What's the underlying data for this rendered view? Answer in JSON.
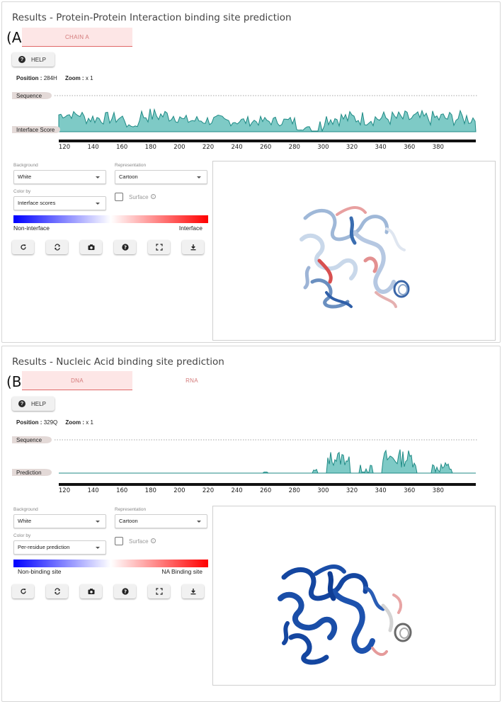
{
  "panelA": {
    "label": "(A)",
    "title": "Results - Protein-Protein Interaction binding site prediction",
    "tabs": [
      {
        "label": "CHAIN A",
        "active": true
      }
    ],
    "help_label": "HELP",
    "position_label": "Position :",
    "position_value": "284H",
    "zoom_label": "Zoom :",
    "zoom_value": "x 1",
    "sequence_label": "Sequence",
    "track_label": "Interface Score",
    "ticks": [
      "120",
      "140",
      "160",
      "180",
      "200",
      "220",
      "240",
      "260",
      "280",
      "300",
      "320",
      "340",
      "360",
      "380"
    ],
    "background_label": "Background",
    "background_value": "White",
    "representation_label": "Representation",
    "representation_value": "Cartoon",
    "colorby_label": "Color by",
    "colorby_value": "Interface scores",
    "surface_label": "Surface",
    "gradient_left": "Non-interface",
    "gradient_right": "Interface",
    "tools": [
      "refresh-icon",
      "sync-icon",
      "camera-icon",
      "help-icon",
      "fullscreen-icon",
      "download-icon"
    ]
  },
  "panelB": {
    "label": "(B)",
    "title": "Results - Nucleic Acid binding site prediction",
    "tabs": [
      {
        "label": "DNA",
        "active": true
      },
      {
        "label": "RNA",
        "active": false
      }
    ],
    "help_label": "HELP",
    "position_label": "Position :",
    "position_value": "329Q",
    "zoom_label": "Zoom :",
    "zoom_value": "x 1",
    "sequence_label": "Sequence",
    "track_label": "Prediction",
    "ticks": [
      "120",
      "140",
      "160",
      "180",
      "200",
      "220",
      "240",
      "260",
      "280",
      "300",
      "320",
      "340",
      "360",
      "380"
    ],
    "background_label": "Background",
    "background_value": "White",
    "representation_label": "Representation",
    "representation_value": "Cartoon",
    "colorby_label": "Color by",
    "colorby_value": "Per-residue prediction",
    "surface_label": "Surface",
    "gradient_left": "Non-binding site",
    "gradient_right": "NA Binding site",
    "tools": [
      "refresh-icon",
      "sync-icon",
      "camera-icon",
      "help-icon",
      "fullscreen-icon",
      "download-icon"
    ]
  },
  "colors": {
    "track_fill": "#7ecac6",
    "track_stroke": "#1f8a85",
    "tab_active_bg": "#fde6e6",
    "tab_text": "#d47a7a",
    "gradient_low": "#0000ff",
    "gradient_high": "#ff0000"
  }
}
